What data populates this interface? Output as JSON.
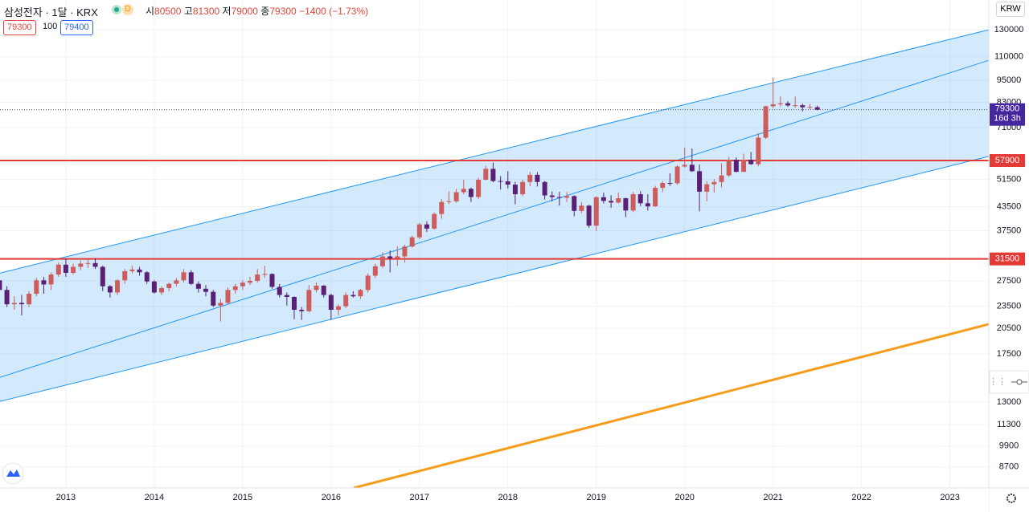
{
  "chart_data": {
    "type": "candlestick",
    "header": {
      "symbol": "삼성전자 · 1달 · KRX",
      "status": "D",
      "open_label": "시",
      "high_label": "고",
      "low_label": "저",
      "close_label": "종",
      "change": {
        "value": -1400,
        "label": "−1400"
      },
      "change_pct": {
        "value": -1.73,
        "label": "(−1.73%)"
      },
      "bid": 79300,
      "size": 100,
      "ask": 79400
    },
    "currency": "KRW",
    "countdown": "16d 3h",
    "y_scale": "log",
    "ylim": [
      7640,
      156300
    ],
    "yticks": [
      8700,
      9900,
      11300,
      13000,
      17500,
      20500,
      23500,
      27500,
      37500,
      43500,
      51500,
      71000,
      83000,
      95000,
      110000,
      130000
    ],
    "xlim": [
      2012.255,
      2023.44
    ],
    "xticks": [
      2013,
      2014,
      2015,
      2016,
      2017,
      2018,
      2019,
      2020,
      2021,
      2022,
      2023
    ],
    "up_color": "#cd5c5c",
    "down_color": "#5b1f75",
    "grid": true,
    "x": [
      2012.25,
      2012.333,
      2012.417,
      2012.5,
      2012.583,
      2012.667,
      2012.75,
      2012.833,
      2012.917,
      2013.0,
      2013.083,
      2013.167,
      2013.25,
      2013.333,
      2013.417,
      2013.5,
      2013.583,
      2013.667,
      2013.75,
      2013.833,
      2013.917,
      2014.0,
      2014.083,
      2014.167,
      2014.25,
      2014.333,
      2014.417,
      2014.5,
      2014.583,
      2014.667,
      2014.75,
      2014.833,
      2014.917,
      2015.0,
      2015.083,
      2015.167,
      2015.25,
      2015.333,
      2015.417,
      2015.5,
      2015.583,
      2015.667,
      2015.75,
      2015.833,
      2015.917,
      2016.0,
      2016.083,
      2016.167,
      2016.25,
      2016.333,
      2016.417,
      2016.5,
      2016.583,
      2016.667,
      2016.75,
      2016.833,
      2016.917,
      2017.0,
      2017.083,
      2017.167,
      2017.25,
      2017.333,
      2017.417,
      2017.5,
      2017.583,
      2017.667,
      2017.75,
      2017.833,
      2017.917,
      2018.0,
      2018.083,
      2018.167,
      2018.25,
      2018.333,
      2018.417,
      2018.5,
      2018.583,
      2018.667,
      2018.75,
      2018.833,
      2018.917,
      2019.0,
      2019.083,
      2019.167,
      2019.25,
      2019.333,
      2019.417,
      2019.5,
      2019.583,
      2019.667,
      2019.75,
      2019.833,
      2019.917,
      2020.0,
      2020.083,
      2020.167,
      2020.25,
      2020.333,
      2020.417,
      2020.5,
      2020.583,
      2020.667,
      2020.75,
      2020.833,
      2020.917,
      2021.0,
      2021.083,
      2021.167,
      2021.25,
      2021.333,
      2021.417,
      2021.5
    ],
    "open": [
      27600,
      26000,
      23800,
      24000,
      23800,
      25400,
      27600,
      26900,
      28600,
      30400,
      28900,
      30000,
      30600,
      30700,
      30000,
      26600,
      25600,
      27600,
      29200,
      29500,
      29000,
      27400,
      25600,
      26300,
      27000,
      27600,
      29000,
      27000,
      26200,
      25700,
      23600,
      24000,
      26000,
      26600,
      27200,
      27500,
      28600,
      28700,
      26500,
      25200,
      24900,
      23000,
      22800,
      26000,
      26700,
      25200,
      23000,
      23500,
      25200,
      25000,
      26000,
      28400,
      30100,
      32000,
      31600,
      32000,
      34000,
      36000,
      39000,
      38000,
      41600,
      44800,
      45000,
      47600,
      48600,
      46200,
      51400,
      55000,
      51000,
      50900,
      49900,
      47000,
      50700,
      53000,
      50700,
      46650,
      46200,
      46000,
      46450,
      42400,
      43800,
      38700,
      46150,
      45100,
      44650,
      45850,
      42500,
      47000,
      44450,
      43600,
      48900,
      50400,
      50300,
      55800,
      56400,
      54200,
      47750,
      50000,
      50700,
      52800,
      58200,
      54000,
      58200,
      56600,
      66700,
      81000,
      82000,
      82500,
      81400,
      81500,
      80500,
      80500
    ],
    "high": [
      28400,
      26600,
      25000,
      25200,
      25800,
      28000,
      28200,
      29000,
      30800,
      31600,
      30600,
      31200,
      31400,
      31600,
      30200,
      26800,
      27800,
      29600,
      30200,
      30000,
      29200,
      27600,
      26600,
      27200,
      28000,
      29600,
      29400,
      27400,
      26800,
      26000,
      24600,
      26400,
      27000,
      27600,
      28200,
      29600,
      30200,
      28800,
      27000,
      25600,
      25000,
      23400,
      26800,
      27200,
      26800,
      25400,
      23800,
      25600,
      25800,
      26200,
      28800,
      30600,
      32800,
      33200,
      34000,
      34400,
      36400,
      39400,
      39800,
      42000,
      45600,
      47800,
      48600,
      51400,
      49000,
      52000,
      56000,
      57200,
      52600,
      54200,
      50800,
      51400,
      54000,
      53900,
      51000,
      47800,
      47700,
      47600,
      46700,
      44800,
      44000,
      46400,
      47500,
      46700,
      47500,
      46000,
      47700,
      47900,
      47000,
      49500,
      51000,
      53500,
      56300,
      62800,
      62400,
      56500,
      51000,
      51700,
      56900,
      59200,
      59000,
      60400,
      61000,
      68500,
      81300,
      96800,
      86000,
      83600,
      86000,
      82300,
      82100,
      81300
    ],
    "low": [
      25800,
      23400,
      23000,
      22200,
      23400,
      25000,
      25400,
      26000,
      28200,
      28200,
      28600,
      29400,
      29800,
      29600,
      25800,
      24800,
      25200,
      27000,
      28800,
      28400,
      27000,
      25400,
      25200,
      25800,
      26600,
      27200,
      26800,
      25600,
      25000,
      23400,
      21400,
      23800,
      25400,
      26000,
      26800,
      27200,
      28000,
      26200,
      24800,
      23600,
      21700,
      21600,
      22600,
      25600,
      24800,
      21600,
      22200,
      23200,
      24800,
      24600,
      25600,
      28000,
      29800,
      29000,
      30200,
      30800,
      33800,
      35600,
      37200,
      37800,
      40400,
      44200,
      44600,
      47000,
      44800,
      45600,
      51200,
      50600,
      48400,
      48700,
      44200,
      46400,
      49400,
      49300,
      45500,
      45000,
      43800,
      44800,
      41000,
      41800,
      38200,
      37450,
      44400,
      43200,
      44400,
      40800,
      42100,
      43700,
      42500,
      43500,
      47600,
      49500,
      49850,
      55400,
      54000,
      42300,
      45000,
      47500,
      49050,
      52300,
      53800,
      53900,
      56400,
      55900,
      66200,
      80000,
      80900,
      80700,
      80200,
      78500,
      79600,
      79000
    ],
    "close": [
      26000,
      23800,
      24000,
      23800,
      25400,
      27600,
      26900,
      28600,
      30400,
      28900,
      30000,
      30600,
      30700,
      30000,
      26600,
      25600,
      27600,
      29200,
      29500,
      29000,
      27400,
      25600,
      26300,
      27000,
      27600,
      29000,
      27000,
      26200,
      25700,
      23600,
      24000,
      26000,
      26600,
      27200,
      27500,
      28600,
      28700,
      26500,
      25200,
      24900,
      23000,
      22800,
      26000,
      26700,
      25200,
      23000,
      23500,
      25200,
      25000,
      26000,
      28400,
      30100,
      32000,
      31600,
      32000,
      34000,
      36000,
      39000,
      38000,
      41600,
      44800,
      45000,
      47600,
      48600,
      46200,
      51400,
      55000,
      51000,
      50900,
      49900,
      47000,
      50700,
      53000,
      50700,
      46650,
      46200,
      46000,
      46450,
      42400,
      43800,
      38700,
      46150,
      45100,
      44650,
      45850,
      42500,
      47000,
      44450,
      43600,
      48900,
      50400,
      50300,
      55800,
      56400,
      54200,
      47750,
      50000,
      50700,
      52800,
      58200,
      54000,
      58200,
      56600,
      66700,
      81000,
      82000,
      82500,
      81400,
      81500,
      80500,
      80700,
      79300
    ],
    "horizontal_lines": [
      {
        "value": 57900,
        "color": "#e53935"
      },
      {
        "value": 31500,
        "color": "#e53935"
      }
    ],
    "channel": {
      "x": [
        2012.255,
        2023.44
      ],
      "upper": [
        28870,
        130000
      ],
      "middle": [
        15150,
        107600
      ],
      "lower": [
        13050,
        59400
      ],
      "color": "#2196f3"
    },
    "trend_line": {
      "x": [
        2016.255,
        2023.44
      ],
      "y": [
        7640,
        21040
      ],
      "color": "#f59c1a"
    }
  }
}
